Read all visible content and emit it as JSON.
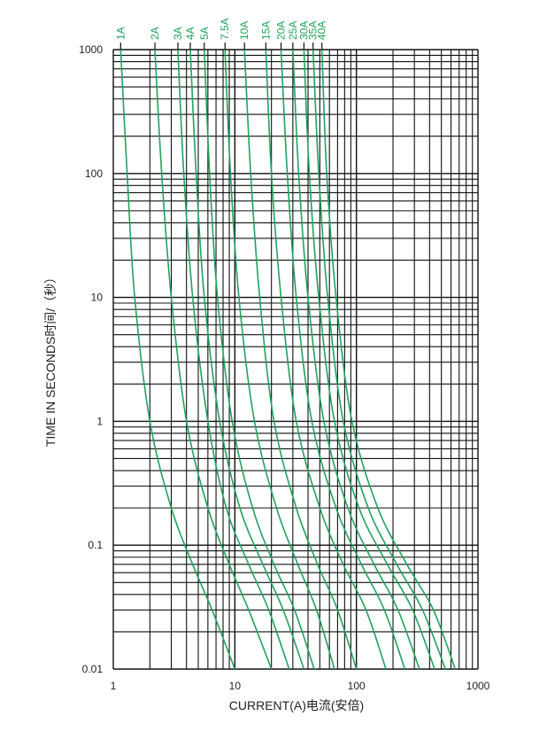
{
  "chart_data": {
    "type": "line",
    "title": "",
    "xlabel": "CURRENT(A)电流(安倍)",
    "ylabel": "TIME IN SECONDS时间/（秒）",
    "x_scale": "log",
    "y_scale": "log",
    "xlim": [
      1,
      1000
    ],
    "ylim": [
      0.01,
      1000
    ],
    "x_ticks": [
      1,
      10,
      100,
      1000
    ],
    "x_tick_labels": [
      "1",
      "10",
      "100",
      "1000"
    ],
    "y_ticks": [
      0.01,
      0.1,
      1,
      10,
      100,
      1000
    ],
    "y_tick_labels": [
      "0.01",
      "0.1",
      "1",
      "10",
      "100",
      "1000"
    ],
    "grid": true,
    "series_color": "#1fa35c",
    "grid_color": "#111111",
    "series": [
      {
        "name": "1A",
        "x": [
          1.15,
          1.3,
          1.5,
          2.0,
          3.0,
          4.5,
          6.5,
          10.0
        ],
        "y": [
          1000,
          100,
          10,
          1,
          0.2,
          0.07,
          0.03,
          0.01
        ]
      },
      {
        "name": "2A",
        "x": [
          2.2,
          2.5,
          3.0,
          4.0,
          6.0,
          9.0,
          13.0,
          20.0
        ],
        "y": [
          1000,
          100,
          10,
          1,
          0.2,
          0.07,
          0.03,
          0.01
        ]
      },
      {
        "name": "3A",
        "x": [
          3.4,
          3.8,
          4.5,
          6.0,
          8.5,
          13.0,
          19.0,
          28.0
        ],
        "y": [
          1000,
          100,
          10,
          1,
          0.2,
          0.07,
          0.03,
          0.01
        ]
      },
      {
        "name": "4A",
        "x": [
          4.3,
          4.8,
          5.6,
          7.5,
          11.0,
          17.0,
          25.0,
          37.0
        ],
        "y": [
          1000,
          100,
          10,
          1,
          0.2,
          0.07,
          0.03,
          0.01
        ]
      },
      {
        "name": "5A",
        "x": [
          5.6,
          6.2,
          7.2,
          9.5,
          14.0,
          21.0,
          31.0,
          45.0
        ],
        "y": [
          1000,
          100,
          10,
          1,
          0.2,
          0.07,
          0.03,
          0.01
        ]
      },
      {
        "name": "7.5A",
        "x": [
          8.3,
          9.2,
          10.8,
          14.5,
          22.0,
          33.0,
          47.0,
          66.0
        ],
        "y": [
          1000,
          100,
          10,
          1,
          0.2,
          0.07,
          0.03,
          0.01
        ]
      },
      {
        "name": "10A",
        "x": [
          12.0,
          13.5,
          16.0,
          21.0,
          32.0,
          48.0,
          70.0,
          100.0
        ],
        "y": [
          1000,
          100,
          10,
          1,
          0.2,
          0.07,
          0.03,
          0.01
        ]
      },
      {
        "name": "15A",
        "x": [
          18.0,
          20.0,
          24.0,
          32.0,
          50.0,
          78.0,
          120.0,
          175.0
        ],
        "y": [
          1000,
          100,
          10,
          1,
          0.2,
          0.07,
          0.03,
          0.01
        ]
      },
      {
        "name": "20A",
        "x": [
          24.0,
          27.0,
          32.0,
          43.0,
          68.0,
          110.0,
          170.0,
          250.0
        ],
        "y": [
          1000,
          100,
          10,
          1,
          0.2,
          0.07,
          0.03,
          0.01
        ]
      },
      {
        "name": "25A",
        "x": [
          30.0,
          33.5,
          40.0,
          54.0,
          85.0,
          140.0,
          220.0,
          330.0
        ],
        "y": [
          1000,
          100,
          10,
          1,
          0.2,
          0.07,
          0.03,
          0.01
        ]
      },
      {
        "name": "30A",
        "x": [
          37.0,
          41.0,
          49.0,
          66.0,
          105.0,
          180.0,
          290.0,
          440.0
        ],
        "y": [
          1000,
          100,
          10,
          1,
          0.2,
          0.07,
          0.03,
          0.01
        ]
      },
      {
        "name": "35A",
        "x": [
          44.0,
          49.0,
          58.0,
          78.0,
          125.0,
          215.0,
          350.0,
          540.0
        ],
        "y": [
          1000,
          100,
          10,
          1,
          0.2,
          0.07,
          0.03,
          0.01
        ]
      },
      {
        "name": "40A",
        "x": [
          52.0,
          57.0,
          68.0,
          92.0,
          150.0,
          260.0,
          430.0,
          650.0
        ],
        "y": [
          1000,
          100,
          10,
          1,
          0.2,
          0.07,
          0.03,
          0.01
        ]
      }
    ]
  }
}
